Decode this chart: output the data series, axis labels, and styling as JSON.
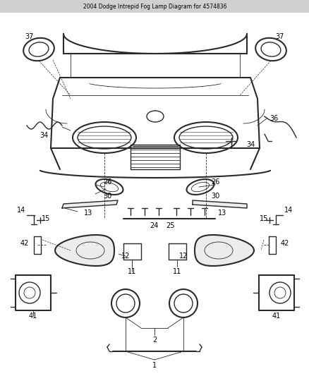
{
  "title": "2004 Dodge Intrepid Fog Lamp Diagram for 4574836",
  "bg_color": "#ffffff",
  "line_color": "#2a2a2a",
  "label_color": "#000000",
  "fig_width": 4.39,
  "fig_height": 5.33,
  "dpi": 100
}
